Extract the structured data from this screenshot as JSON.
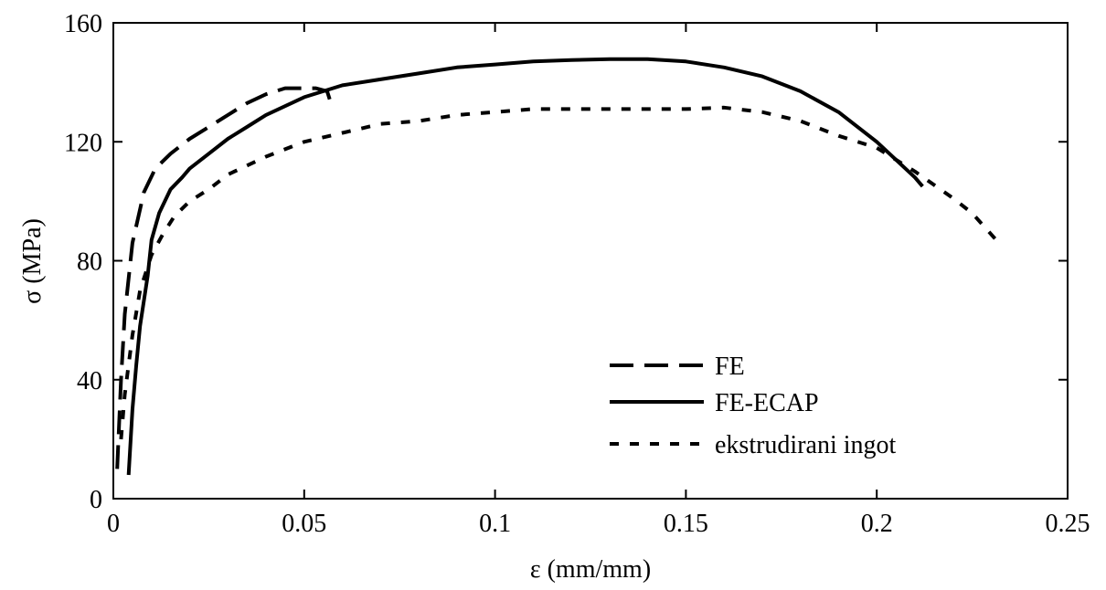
{
  "chart_data": {
    "type": "line",
    "title": "",
    "xlabel": "ε (mm/mm)",
    "ylabel": "σ (MPa)",
    "xlim": [
      0,
      0.25
    ],
    "ylim": [
      0,
      160
    ],
    "x_ticks": [
      "0",
      "0.05",
      "0.1",
      "0.15",
      "0.2",
      "0.25"
    ],
    "x_tick_values": [
      0,
      0.05,
      0.1,
      0.15,
      0.2,
      0.25
    ],
    "y_ticks": [
      "0",
      "40",
      "80",
      "120",
      "160"
    ],
    "y_tick_values": [
      0,
      40,
      80,
      120,
      160
    ],
    "grid": false,
    "legend_position": "bottom-right",
    "series": [
      {
        "name": "FE",
        "style": "dashed",
        "x": [
          0.001,
          0.002,
          0.003,
          0.005,
          0.008,
          0.011,
          0.015,
          0.02,
          0.025,
          0.03,
          0.035,
          0.04,
          0.045,
          0.05,
          0.053,
          0.056,
          0.057
        ],
        "y": [
          10,
          40,
          62,
          86,
          103,
          111,
          116,
          121,
          125,
          129,
          133,
          136,
          138,
          138,
          138,
          137,
          133
        ]
      },
      {
        "name": "FE-ECAP",
        "style": "solid",
        "x": [
          0.004,
          0.005,
          0.006,
          0.007,
          0.009,
          0.01,
          0.012,
          0.015,
          0.018,
          0.02,
          0.025,
          0.03,
          0.035,
          0.04,
          0.045,
          0.05,
          0.055,
          0.06,
          0.07,
          0.08,
          0.09,
          0.1,
          0.11,
          0.12,
          0.13,
          0.14,
          0.15,
          0.16,
          0.17,
          0.18,
          0.19,
          0.2,
          0.205,
          0.21,
          0.212
        ],
        "y": [
          8,
          30,
          45,
          58,
          75,
          87,
          96,
          104,
          108,
          111,
          116,
          121,
          125,
          129,
          132,
          135,
          137,
          139,
          141,
          143,
          145,
          146,
          147,
          147.5,
          147.8,
          147.8,
          147,
          145,
          142,
          137,
          130,
          120,
          114,
          108,
          105
        ]
      },
      {
        "name": "ekstrudirani ingot",
        "style": "dotted",
        "x": [
          0.002,
          0.003,
          0.005,
          0.007,
          0.01,
          0.013,
          0.016,
          0.02,
          0.025,
          0.03,
          0.04,
          0.05,
          0.06,
          0.07,
          0.08,
          0.09,
          0.1,
          0.11,
          0.12,
          0.13,
          0.14,
          0.15,
          0.16,
          0.17,
          0.18,
          0.19,
          0.2,
          0.21,
          0.22,
          0.225,
          0.232
        ],
        "y": [
          20,
          35,
          55,
          70,
          82,
          89,
          95,
          100,
          104,
          109,
          115,
          120,
          123,
          126,
          127,
          129,
          130,
          131,
          131,
          131,
          131,
          131,
          131.5,
          130,
          127,
          122,
          118,
          110,
          101,
          96,
          86
        ]
      }
    ]
  }
}
